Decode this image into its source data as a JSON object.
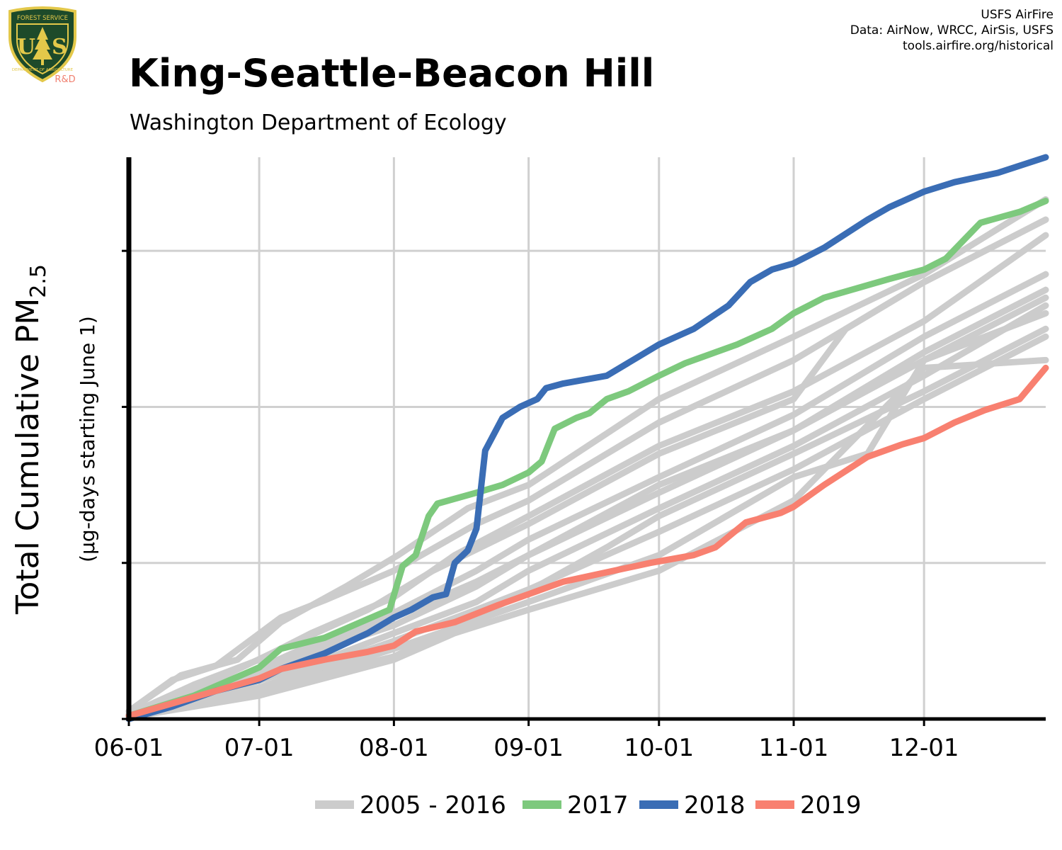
{
  "header": {
    "title": "King-Seattle-Beacon Hill",
    "subtitle": "Washington Department of Ecology",
    "credits": [
      "USFS AirFire",
      "Data: AirNow, WRCC, AirSis, USFS",
      "tools.airfire.org/historical"
    ]
  },
  "logo": {
    "top_text": "FOREST SERVICE",
    "letters": "US",
    "bottom_text": "DEPARTMENT OF AGRICULTURE",
    "tag": "R&D",
    "colors": {
      "shield": "#1d4a2a",
      "border": "#e3c84a",
      "tag": "#f08070"
    }
  },
  "chart_data": {
    "type": "line",
    "title": "King-Seattle-Beacon Hill",
    "subtitle": "Washington Department of Ecology",
    "ylabel": "Total Cumulative PM",
    "ylabel_subscript": "2.5",
    "ylabel_sub": "(µg-days starting June 1)",
    "x_unit": "day of season (0 = June 1)",
    "xlim": [
      0,
      211
    ],
    "ylim": [
      0,
      3.6
    ],
    "y_ticks": [
      0,
      1,
      2,
      3
    ],
    "y_tick_labels_shown": false,
    "x_ticks": [
      {
        "day": 0,
        "label": "06-01"
      },
      {
        "day": 30,
        "label": "07-01"
      },
      {
        "day": 61,
        "label": "08-01"
      },
      {
        "day": 92,
        "label": "09-01"
      },
      {
        "day": 122,
        "label": "10-01"
      },
      {
        "day": 153,
        "label": "11-01"
      },
      {
        "day": 183,
        "label": "12-01"
      }
    ],
    "grid": true,
    "legend_position": "bottom",
    "legend": [
      {
        "label": "2005 - 2016",
        "color": "#cccccc"
      },
      {
        "label": "2017",
        "color": "#7dc97d"
      },
      {
        "label": "2018",
        "color": "#3a6db5"
      },
      {
        "label": "2019",
        "color": "#f88070"
      }
    ],
    "background_series": {
      "label": "2005 - 2016",
      "color": "#cccccc",
      "lines": [
        {
          "points": [
            [
              0,
              0.05
            ],
            [
              10,
              0.25
            ],
            [
              20,
              0.34
            ],
            [
              35,
              0.65
            ],
            [
              45,
              0.76
            ],
            [
              61,
              0.95
            ],
            [
              80,
              1.25
            ],
            [
              92,
              1.4
            ],
            [
              122,
              1.9
            ],
            [
              153,
              2.3
            ],
            [
              183,
              2.8
            ],
            [
              211,
              3.2
            ]
          ]
        },
        {
          "points": [
            [
              0,
              0.05
            ],
            [
              12,
              0.28
            ],
            [
              25,
              0.38
            ],
            [
              35,
              0.62
            ],
            [
              50,
              0.85
            ],
            [
              62,
              1.05
            ],
            [
              78,
              1.35
            ],
            [
              92,
              1.5
            ],
            [
              122,
              2.05
            ],
            [
              153,
              2.45
            ],
            [
              183,
              2.85
            ],
            [
              211,
              3.33
            ]
          ]
        },
        {
          "points": [
            [
              0,
              0.03
            ],
            [
              15,
              0.22
            ],
            [
              30,
              0.38
            ],
            [
              42,
              0.55
            ],
            [
              61,
              0.78
            ],
            [
              75,
              1.05
            ],
            [
              92,
              1.3
            ],
            [
              122,
              1.75
            ],
            [
              153,
              2.1
            ],
            [
              183,
              2.55
            ],
            [
              211,
              3.1
            ]
          ]
        },
        {
          "points": [
            [
              0,
              0.03
            ],
            [
              20,
              0.25
            ],
            [
              35,
              0.45
            ],
            [
              55,
              0.7
            ],
            [
              70,
              0.95
            ],
            [
              92,
              1.25
            ],
            [
              122,
              1.7
            ],
            [
              153,
              2.05
            ],
            [
              165,
              2.5
            ],
            [
              183,
              2.8
            ],
            [
              211,
              3.2
            ]
          ]
        },
        {
          "points": [
            [
              0,
              0.02
            ],
            [
              20,
              0.2
            ],
            [
              40,
              0.45
            ],
            [
              61,
              0.68
            ],
            [
              80,
              0.95
            ],
            [
              92,
              1.15
            ],
            [
              122,
              1.55
            ],
            [
              153,
              1.95
            ],
            [
              183,
              2.45
            ],
            [
              211,
              2.85
            ]
          ]
        },
        {
          "points": [
            [
              0,
              0.02
            ],
            [
              20,
              0.2
            ],
            [
              40,
              0.42
            ],
            [
              61,
              0.65
            ],
            [
              80,
              0.88
            ],
            [
              92,
              1.05
            ],
            [
              122,
              1.45
            ],
            [
              153,
              1.85
            ],
            [
              183,
              2.35
            ],
            [
              211,
              2.75
            ]
          ]
        },
        {
          "points": [
            [
              0,
              0.02
            ],
            [
              25,
              0.22
            ],
            [
              45,
              0.45
            ],
            [
              61,
              0.6
            ],
            [
              80,
              0.85
            ],
            [
              92,
              1.05
            ],
            [
              122,
              1.5
            ],
            [
              153,
              1.85
            ],
            [
              183,
              2.3
            ],
            [
              211,
              2.7
            ]
          ]
        },
        {
          "points": [
            [
              0,
              0.02
            ],
            [
              25,
              0.2
            ],
            [
              45,
              0.38
            ],
            [
              61,
              0.55
            ],
            [
              80,
              0.75
            ],
            [
              92,
              0.95
            ],
            [
              122,
              1.35
            ],
            [
              153,
              1.75
            ],
            [
              183,
              2.2
            ],
            [
              211,
              2.65
            ]
          ]
        },
        {
          "points": [
            [
              0,
              0.01
            ],
            [
              30,
              0.2
            ],
            [
              61,
              0.5
            ],
            [
              80,
              0.7
            ],
            [
              92,
              0.83
            ],
            [
              122,
              1.2
            ],
            [
              153,
              1.6
            ],
            [
              183,
              2.05
            ],
            [
              211,
              2.45
            ]
          ]
        },
        {
          "points": [
            [
              0,
              0.01
            ],
            [
              30,
              0.18
            ],
            [
              61,
              0.45
            ],
            [
              92,
              0.75
            ],
            [
              122,
              1.05
            ],
            [
              153,
              1.55
            ],
            [
              170,
              1.7
            ],
            [
              183,
              2.3
            ],
            [
              211,
              2.6
            ]
          ]
        },
        {
          "points": [
            [
              0,
              0.01
            ],
            [
              30,
              0.15
            ],
            [
              61,
              0.38
            ],
            [
              75,
              0.55
            ],
            [
              92,
              0.7
            ],
            [
              122,
              0.95
            ],
            [
              153,
              1.4
            ],
            [
              183,
              2.25
            ],
            [
              211,
              2.3
            ]
          ]
        },
        {
          "points": [
            [
              0,
              0.02
            ],
            [
              28,
              0.18
            ],
            [
              61,
              0.4
            ],
            [
              92,
              0.82
            ],
            [
              110,
              1.1
            ],
            [
              122,
              1.3
            ],
            [
              153,
              1.7
            ],
            [
              183,
              2.1
            ],
            [
              211,
              2.5
            ]
          ]
        }
      ]
    },
    "series": [
      {
        "name": "2017",
        "color": "#7dc97d",
        "points": [
          [
            0,
            0.02
          ],
          [
            15,
            0.15
          ],
          [
            30,
            0.33
          ],
          [
            35,
            0.45
          ],
          [
            45,
            0.52
          ],
          [
            55,
            0.64
          ],
          [
            60,
            0.7
          ],
          [
            63,
            0.98
          ],
          [
            66,
            1.05
          ],
          [
            69,
            1.3
          ],
          [
            71,
            1.38
          ],
          [
            80,
            1.45
          ],
          [
            86,
            1.5
          ],
          [
            92,
            1.58
          ],
          [
            95,
            1.65
          ],
          [
            98,
            1.86
          ],
          [
            103,
            1.93
          ],
          [
            106,
            1.96
          ],
          [
            110,
            2.05
          ],
          [
            115,
            2.1
          ],
          [
            122,
            2.2
          ],
          [
            128,
            2.28
          ],
          [
            140,
            2.4
          ],
          [
            148,
            2.5
          ],
          [
            153,
            2.6
          ],
          [
            160,
            2.7
          ],
          [
            175,
            2.82
          ],
          [
            183,
            2.88
          ],
          [
            188,
            2.95
          ],
          [
            196,
            3.18
          ],
          [
            205,
            3.25
          ],
          [
            211,
            3.32
          ]
        ]
      },
      {
        "name": "2018",
        "color": "#3a6db5",
        "points": [
          [
            0,
            0.0
          ],
          [
            10,
            0.08
          ],
          [
            20,
            0.18
          ],
          [
            30,
            0.25
          ],
          [
            35,
            0.32
          ],
          [
            45,
            0.42
          ],
          [
            55,
            0.55
          ],
          [
            61,
            0.65
          ],
          [
            65,
            0.7
          ],
          [
            70,
            0.78
          ],
          [
            73,
            0.8
          ],
          [
            75,
            1.0
          ],
          [
            78,
            1.08
          ],
          [
            80,
            1.22
          ],
          [
            82,
            1.72
          ],
          [
            86,
            1.93
          ],
          [
            90,
            2.0
          ],
          [
            94,
            2.05
          ],
          [
            96,
            2.12
          ],
          [
            100,
            2.15
          ],
          [
            110,
            2.2
          ],
          [
            122,
            2.4
          ],
          [
            130,
            2.5
          ],
          [
            138,
            2.65
          ],
          [
            143,
            2.8
          ],
          [
            148,
            2.88
          ],
          [
            153,
            2.92
          ],
          [
            160,
            3.02
          ],
          [
            170,
            3.2
          ],
          [
            175,
            3.28
          ],
          [
            183,
            3.38
          ],
          [
            190,
            3.44
          ],
          [
            200,
            3.5
          ],
          [
            211,
            3.6
          ]
        ]
      },
      {
        "name": "2019",
        "color": "#f88070",
        "points": [
          [
            0,
            0.02
          ],
          [
            10,
            0.1
          ],
          [
            20,
            0.18
          ],
          [
            30,
            0.26
          ],
          [
            35,
            0.32
          ],
          [
            45,
            0.38
          ],
          [
            55,
            0.43
          ],
          [
            61,
            0.47
          ],
          [
            66,
            0.56
          ],
          [
            75,
            0.62
          ],
          [
            85,
            0.73
          ],
          [
            92,
            0.8
          ],
          [
            100,
            0.88
          ],
          [
            110,
            0.94
          ],
          [
            120,
            1.0
          ],
          [
            130,
            1.05
          ],
          [
            135,
            1.1
          ],
          [
            142,
            1.26
          ],
          [
            150,
            1.32
          ],
          [
            153,
            1.36
          ],
          [
            160,
            1.5
          ],
          [
            170,
            1.68
          ],
          [
            178,
            1.76
          ],
          [
            183,
            1.8
          ],
          [
            190,
            1.9
          ],
          [
            197,
            1.98
          ],
          [
            205,
            2.05
          ],
          [
            211,
            2.25
          ]
        ]
      }
    ]
  }
}
